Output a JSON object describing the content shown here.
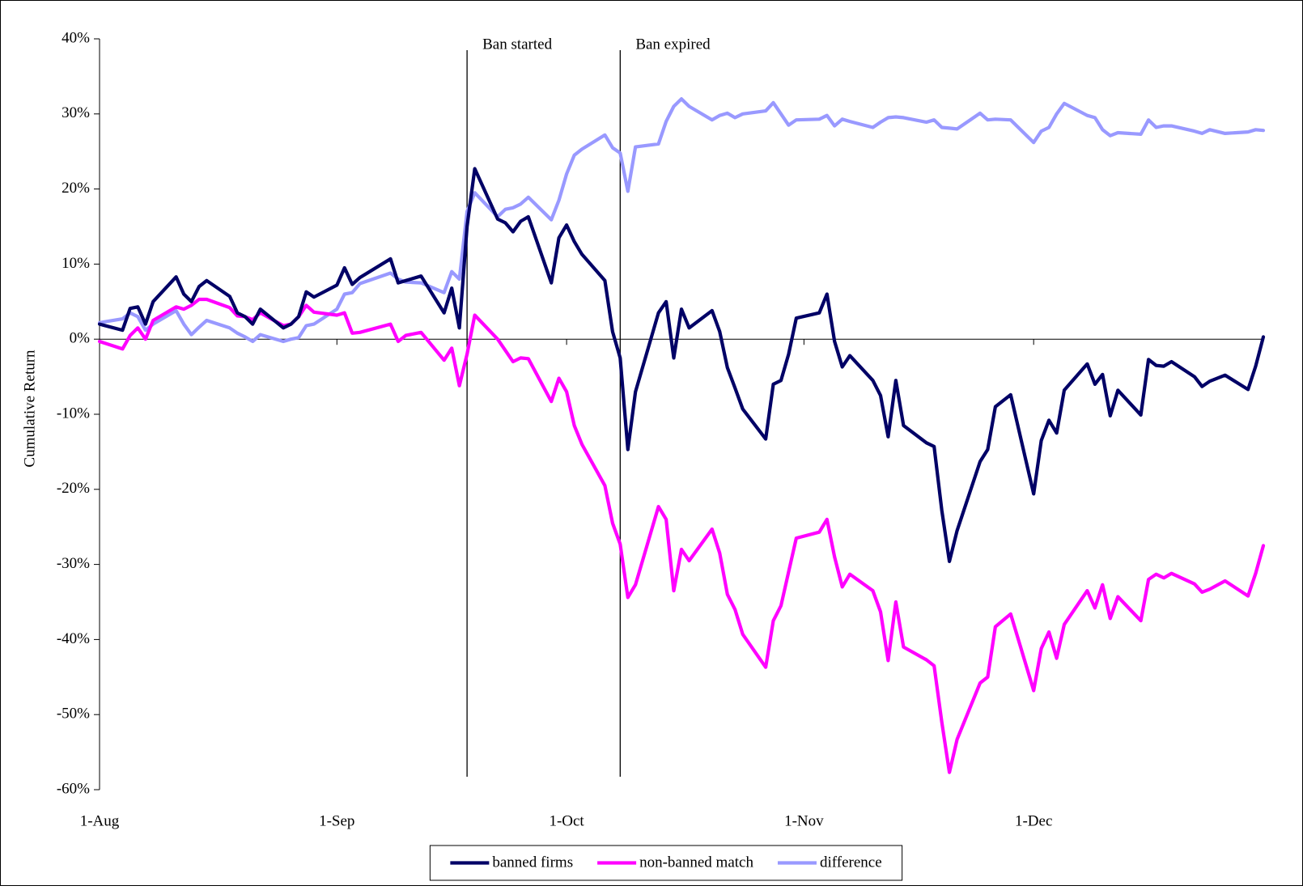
{
  "chart_data": {
    "type": "line",
    "y_label": "Cumulative Return",
    "x": [
      0,
      3,
      4,
      5,
      6,
      7,
      10,
      11,
      12,
      13,
      14,
      17,
      18,
      19,
      20,
      21,
      24,
      25,
      26,
      27,
      28,
      31,
      32,
      33,
      34,
      38,
      39,
      40,
      42,
      45,
      46,
      47,
      48,
      49,
      52,
      53,
      54,
      55,
      56,
      59,
      60,
      61,
      62,
      63,
      66,
      67,
      68,
      69,
      70,
      73,
      74,
      75,
      76,
      77,
      80,
      81,
      82,
      83,
      84,
      87,
      88,
      89,
      90,
      91,
      94,
      95,
      96,
      97,
      98,
      101,
      102,
      103,
      104,
      105,
      108,
      109,
      110,
      111,
      112,
      115,
      116,
      117,
      119,
      122,
      123,
      124,
      125,
      126,
      129,
      130,
      131,
      132,
      133,
      136,
      137,
      138,
      139,
      140,
      143,
      144,
      145,
      147,
      150,
      151,
      152
    ],
    "series": [
      {
        "name": "banned firms",
        "color": "#000066",
        "values": [
          2,
          1.2,
          4.1,
          4.3,
          2,
          5,
          8.3,
          6,
          5,
          7,
          7.8,
          5.7,
          3.5,
          3,
          2,
          4,
          1.5,
          2,
          3,
          6.3,
          5.6,
          7.2,
          9.5,
          7.3,
          8.2,
          10.7,
          7.5,
          7.8,
          8.4,
          3.5,
          6.8,
          1.5,
          15,
          22.7,
          16,
          15.5,
          14.3,
          15.7,
          16.3,
          7.5,
          13.5,
          15.2,
          13,
          11.3,
          7.8,
          1,
          -2.5,
          -14.7,
          -7,
          3.5,
          5,
          -2.5,
          4,
          1.5,
          3.8,
          1,
          -3.8,
          -6.5,
          -9.3,
          -13.3,
          -6,
          -5.5,
          -2,
          2.8,
          3.5,
          6,
          -0.3,
          -3.7,
          -2.2,
          -5.5,
          -7.5,
          -13,
          -5.5,
          -11.5,
          -13.8,
          -14.3,
          -22.8,
          -29.6,
          -25.5,
          -16.3,
          -14.7,
          -9,
          -7.4,
          -20.6,
          -13.5,
          -10.8,
          -12.5,
          -6.8,
          -3.3,
          -6,
          -4.7,
          -10.2,
          -6.8,
          -10.1,
          -2.7,
          -3.5,
          -3.6,
          -3,
          -5,
          -6.3,
          -5.6,
          -4.8,
          -6.7,
          -3.6,
          0.3
        ]
      },
      {
        "name": "non-banned match",
        "color": "#ff00ff",
        "values": [
          -0.3,
          -1.3,
          0.5,
          1.5,
          0,
          2.5,
          4.3,
          4,
          4.5,
          5.3,
          5.3,
          4.2,
          3.1,
          3,
          2.6,
          3.5,
          1.8,
          2,
          3,
          4.5,
          3.6,
          3.2,
          3.5,
          0.8,
          0.9,
          2,
          -0.3,
          0.5,
          0.9,
          -2.8,
          -1.2,
          -6.2,
          -2,
          3.2,
          0,
          -1.5,
          -3,
          -2.5,
          -2.6,
          -8.3,
          -5.2,
          -7,
          -11.5,
          -14,
          -19.5,
          -24.5,
          -27.3,
          -34.4,
          -32.7,
          -22.3,
          -24,
          -33.5,
          -28,
          -29.5,
          -25.3,
          -28.5,
          -34,
          -36,
          -39.3,
          -43.7,
          -37.5,
          -35.5,
          -31,
          -26.5,
          -25.7,
          -24,
          -29,
          -33,
          -31.3,
          -33.5,
          -36.3,
          -42.8,
          -35,
          -41,
          -42.7,
          -43.5,
          -51,
          -57.7,
          -53.3,
          -45.8,
          -45,
          -38.3,
          -36.6,
          -46.8,
          -41.2,
          -39,
          -42.5,
          -38,
          -33.5,
          -35.8,
          -32.7,
          -37.2,
          -34.3,
          -37.5,
          -32,
          -31.3,
          -31.8,
          -31.2,
          -32.6,
          -33.7,
          -33.3,
          -32.2,
          -34.2,
          -31.2,
          -27.5
        ]
      },
      {
        "name": "difference",
        "color": "#9999ff",
        "values": [
          2.2,
          2.7,
          3.5,
          3,
          1.2,
          2,
          3.8,
          2,
          0.6,
          1.6,
          2.5,
          1.5,
          0.8,
          0.3,
          -0.3,
          0.6,
          -0.3,
          0,
          0.2,
          1.8,
          2,
          4,
          6,
          6.2,
          7.4,
          8.8,
          8,
          7.6,
          7.5,
          6.2,
          9,
          8,
          17,
          19.5,
          16.3,
          17.3,
          17.5,
          18,
          18.9,
          15.9,
          18.5,
          22,
          24.5,
          25.3,
          27.2,
          25.5,
          24.8,
          19.7,
          25.6,
          26,
          29,
          31,
          32,
          31,
          29.2,
          29.8,
          30.1,
          29.5,
          30,
          30.4,
          31.5,
          30,
          28.5,
          29.2,
          29.3,
          29.8,
          28.4,
          29.3,
          29,
          28.2,
          28.9,
          29.5,
          29.6,
          29.5,
          28.9,
          29.2,
          28.2,
          28.1,
          28,
          30.1,
          29.2,
          29.3,
          29.2,
          26.2,
          27.7,
          28.2,
          30,
          31.4,
          29.8,
          29.5,
          27.9,
          27.1,
          27.5,
          27.3,
          29.2,
          28.2,
          28.4,
          28.4,
          27.7,
          27.4,
          27.9,
          27.4,
          27.6,
          27.9,
          27.8
        ]
      }
    ],
    "xlim": [
      0,
      152
    ],
    "xticks": [
      {
        "value": 0,
        "label": "1-Aug"
      },
      {
        "value": 31,
        "label": "1-Sep"
      },
      {
        "value": 61,
        "label": "1-Oct"
      },
      {
        "value": 92,
        "label": "1-Nov"
      },
      {
        "value": 122,
        "label": "1-Dec"
      }
    ],
    "ylim": [
      -60,
      40
    ],
    "yticks": [
      {
        "value": -60,
        "label": "-60%"
      },
      {
        "value": -50,
        "label": "-50%"
      },
      {
        "value": -40,
        "label": "-40%"
      },
      {
        "value": -30,
        "label": "-30%"
      },
      {
        "value": -20,
        "label": "-20%"
      },
      {
        "value": -10,
        "label": "-10%"
      },
      {
        "value": 0,
        "label": "0%"
      },
      {
        "value": 10,
        "label": "10%"
      },
      {
        "value": 20,
        "label": "20%"
      },
      {
        "value": 30,
        "label": "30%"
      },
      {
        "value": 40,
        "label": "40%"
      }
    ],
    "annotations": [
      {
        "x": 48,
        "label": "Ban started"
      },
      {
        "x": 68,
        "label": "Ban expired"
      }
    ],
    "legend": "bottom"
  }
}
